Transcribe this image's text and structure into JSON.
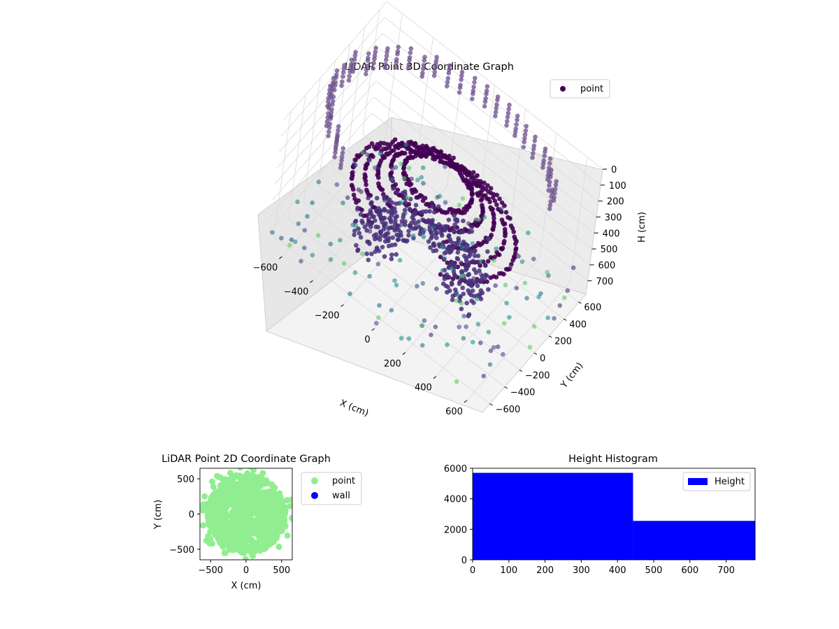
{
  "colors": {
    "point_3d_dark": "#440154",
    "point_3d_mid": "#3b528b",
    "point_3d_teal": "#21918c",
    "point_3d_light": "#5ec962",
    "point_2d": "#90ee90",
    "wall": "#0000ff",
    "histogram": "#0000ff",
    "pane_face": "#f2f2f2",
    "grid": "#d9d9d9"
  },
  "chart_data": [
    {
      "type": "scatter",
      "projection": "3d",
      "title": "LiDAR Point 3D Coordinate Graph",
      "xlabel": "X (cm)",
      "ylabel": "Y (cm)",
      "zlabel": "H (cm)",
      "xlim": [
        -700,
        700
      ],
      "ylim": [
        -700,
        700
      ],
      "zlim": [
        0,
        780
      ],
      "z_inverted": true,
      "xticks": [
        "−600",
        "−400",
        "−200",
        "0",
        "200",
        "400",
        "600"
      ],
      "yticks": [
        "−600",
        "−400",
        "−200",
        "0",
        "200",
        "400",
        "600"
      ],
      "zticks": [
        "0",
        "100",
        "200",
        "300",
        "400",
        "500",
        "600",
        "700"
      ],
      "legend": [
        "point"
      ],
      "legend_position": "top-right",
      "grid": true,
      "colormap": "viridis",
      "series": [
        {
          "name": "point",
          "description_points": "dense rings near center at heights 200–600, sparse columns at perimeter"
        }
      ]
    },
    {
      "type": "scatter",
      "title": "LiDAR Point 2D Coordinate Graph",
      "xlabel": "X (cm)",
      "ylabel": "Y (cm)",
      "xlim": [
        -650,
        650
      ],
      "ylim": [
        -650,
        650
      ],
      "xticks": [
        "−500",
        "0",
        "500"
      ],
      "yticks": [
        "−500",
        "0",
        "500"
      ],
      "legend": [
        "point",
        "wall"
      ],
      "legend_position": "outside-right",
      "series": [
        {
          "name": "point",
          "color": "#90ee90",
          "shape": "disk",
          "center": [
            0,
            0
          ],
          "radius": 560
        },
        {
          "name": "wall",
          "color": "#0000ff",
          "points": []
        }
      ]
    },
    {
      "type": "bar",
      "subtype": "histogram",
      "title": "Height Histogram",
      "xlim": [
        0,
        780
      ],
      "ylim": [
        0,
        6000
      ],
      "xticks": [
        "0",
        "100",
        "200",
        "300",
        "400",
        "500",
        "600",
        "700"
      ],
      "yticks": [
        "0",
        "2000",
        "4000",
        "6000"
      ],
      "legend": [
        "Height"
      ],
      "legend_position": "upper right",
      "series": [
        {
          "name": "Height",
          "bins": [
            [
              0,
              443,
              5700
            ],
            [
              443,
              780,
              2550
            ]
          ]
        }
      ]
    }
  ]
}
